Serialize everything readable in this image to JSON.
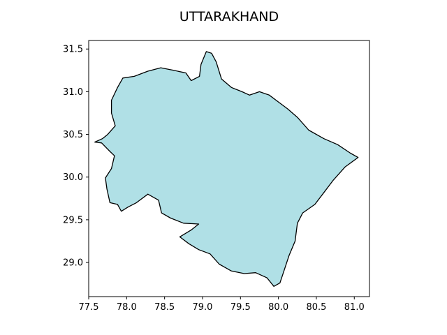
{
  "chart_data": {
    "type": "map",
    "title": "UTTARAKHAND",
    "fill_color": "#b0e0e6",
    "edge_color": "#000000",
    "xlim": [
      77.5,
      81.2
    ],
    "ylim": [
      28.6,
      31.6
    ],
    "x_ticks": [
      77.5,
      78.0,
      78.5,
      79.0,
      79.5,
      80.0,
      80.5,
      81.0
    ],
    "y_ticks": [
      29.0,
      29.5,
      30.0,
      30.5,
      31.0,
      31.5
    ],
    "x_tick_labels": [
      "77.5",
      "78.0",
      "78.5",
      "79.0",
      "79.5",
      "80.0",
      "80.5",
      "81.0"
    ],
    "y_tick_labels": [
      "29.0",
      "29.5",
      "30.0",
      "30.5",
      "31.0",
      "31.5"
    ],
    "boundary": [
      [
        77.58,
        30.41
      ],
      [
        77.67,
        30.4
      ],
      [
        77.78,
        30.3
      ],
      [
        77.84,
        30.25
      ],
      [
        77.8,
        30.1
      ],
      [
        77.72,
        29.99
      ],
      [
        77.74,
        29.86
      ],
      [
        77.78,
        29.7
      ],
      [
        77.88,
        29.68
      ],
      [
        77.93,
        29.6
      ],
      [
        78.02,
        29.65
      ],
      [
        78.13,
        29.7
      ],
      [
        78.28,
        29.8
      ],
      [
        78.42,
        29.73
      ],
      [
        78.46,
        29.58
      ],
      [
        78.58,
        29.52
      ],
      [
        78.75,
        29.46
      ],
      [
        78.95,
        29.45
      ],
      [
        78.85,
        29.38
      ],
      [
        78.7,
        29.3
      ],
      [
        78.82,
        29.22
      ],
      [
        78.95,
        29.15
      ],
      [
        79.1,
        29.1
      ],
      [
        79.22,
        28.98
      ],
      [
        79.38,
        28.9
      ],
      [
        79.55,
        28.87
      ],
      [
        79.7,
        28.88
      ],
      [
        79.85,
        28.82
      ],
      [
        79.94,
        28.72
      ],
      [
        80.02,
        28.76
      ],
      [
        80.08,
        28.92
      ],
      [
        80.14,
        29.08
      ],
      [
        80.22,
        29.25
      ],
      [
        80.25,
        29.46
      ],
      [
        80.32,
        29.58
      ],
      [
        80.48,
        29.68
      ],
      [
        80.6,
        29.82
      ],
      [
        80.72,
        29.96
      ],
      [
        80.88,
        30.12
      ],
      [
        81.05,
        30.23
      ],
      [
        80.95,
        30.28
      ],
      [
        80.78,
        30.38
      ],
      [
        80.6,
        30.45
      ],
      [
        80.4,
        30.55
      ],
      [
        80.25,
        30.7
      ],
      [
        80.12,
        30.8
      ],
      [
        80.0,
        30.88
      ],
      [
        79.88,
        30.96
      ],
      [
        79.75,
        31.0
      ],
      [
        79.62,
        30.96
      ],
      [
        79.52,
        31.0
      ],
      [
        79.38,
        31.05
      ],
      [
        79.25,
        31.15
      ],
      [
        79.18,
        31.35
      ],
      [
        79.12,
        31.45
      ],
      [
        79.05,
        31.47
      ],
      [
        78.98,
        31.32
      ],
      [
        78.96,
        31.18
      ],
      [
        78.85,
        31.13
      ],
      [
        78.78,
        31.22
      ],
      [
        78.62,
        31.25
      ],
      [
        78.45,
        31.28
      ],
      [
        78.28,
        31.24
      ],
      [
        78.1,
        31.18
      ],
      [
        77.95,
        31.16
      ],
      [
        77.88,
        31.05
      ],
      [
        77.8,
        30.9
      ],
      [
        77.8,
        30.75
      ],
      [
        77.85,
        30.6
      ],
      [
        77.75,
        30.5
      ],
      [
        77.68,
        30.45
      ]
    ]
  }
}
